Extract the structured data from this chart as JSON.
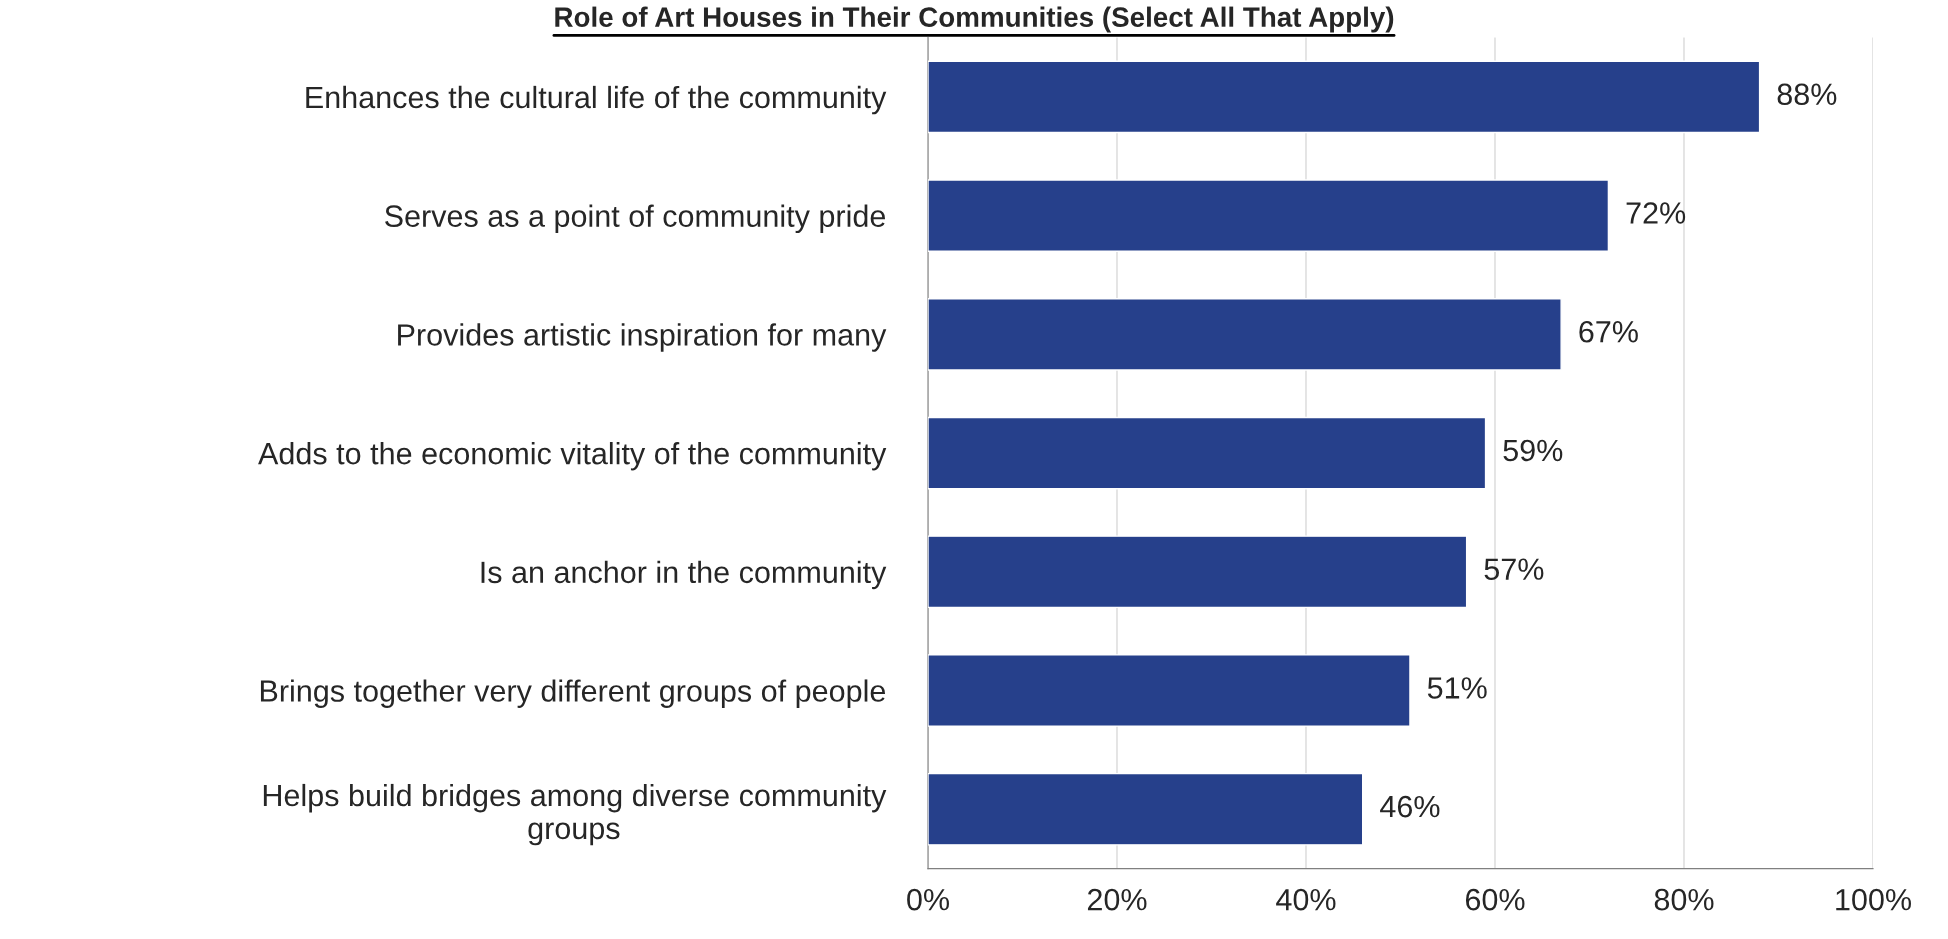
{
  "chart_data": {
    "type": "bar",
    "orientation": "horizontal",
    "title": "Role of Art Houses in Their Communities (Select All That Apply)",
    "categories": [
      "Enhances the cultural life of the community",
      "Serves as a point of community pride",
      "Provides artistic inspiration for many",
      "Adds to the economic vitality of the community",
      "Is an anchor in the community",
      "Brings together very different groups of people",
      "Helps build bridges among diverse community\ngroups"
    ],
    "values": [
      88,
      72,
      67,
      59,
      57,
      51,
      46
    ],
    "value_labels": [
      "88%",
      "72%",
      "67%",
      "59%",
      "57%",
      "51%",
      "46%"
    ],
    "color": "#26408b",
    "xlim": [
      0,
      100
    ],
    "xticks": [
      {
        "value": 0,
        "label": "0%"
      },
      {
        "value": 20,
        "label": "20%"
      },
      {
        "value": 40,
        "label": "40%"
      },
      {
        "value": 60,
        "label": "60%"
      },
      {
        "value": 80,
        "label": "80%"
      },
      {
        "value": 100,
        "label": "100%"
      }
    ],
    "grid": "x",
    "legend": false
  }
}
